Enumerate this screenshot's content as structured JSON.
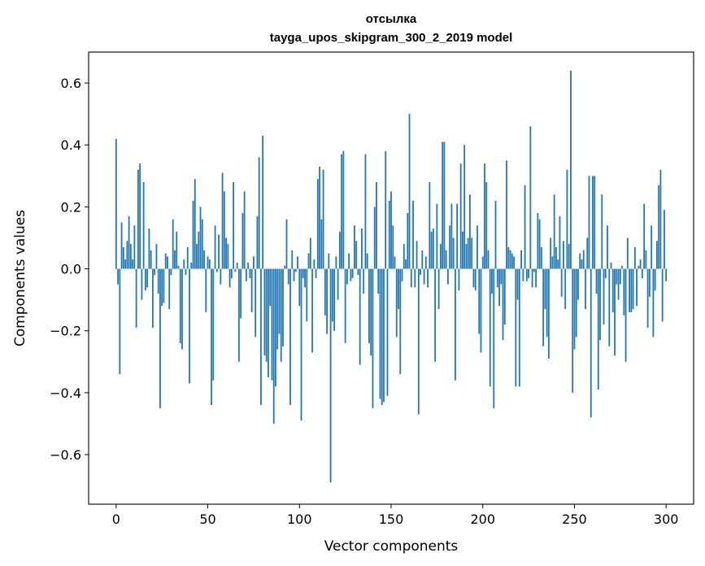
{
  "chart_data": {
    "type": "bar",
    "title": "отсылка",
    "subtitle": "tayga_upos_skipgram_300_2_2019 model",
    "xlabel": "Vector components",
    "ylabel": "Components values",
    "xlim": [
      -15,
      315
    ],
    "ylim": [
      -0.76,
      0.7
    ],
    "xticks": [
      0,
      50,
      100,
      150,
      200,
      250,
      300
    ],
    "xtick_labels": [
      "0",
      "50",
      "100",
      "150",
      "200",
      "250",
      "300"
    ],
    "yticks": [
      -0.6,
      -0.4,
      -0.2,
      0.0,
      0.2,
      0.4,
      0.6
    ],
    "ytick_labels": [
      "−0.6",
      "−0.4",
      "−0.2",
      "0.0",
      "0.2",
      "0.4",
      "0.6"
    ],
    "grid": false,
    "color": "#1f77b4",
    "x_start": 0,
    "values": [
      0.42,
      -0.05,
      -0.34,
      0.15,
      0.07,
      0.03,
      0.09,
      0.17,
      0.08,
      0.03,
      0.14,
      -0.19,
      0.32,
      0.34,
      -0.1,
      0.28,
      -0.07,
      -0.06,
      0.13,
      0.06,
      -0.19,
      -0.02,
      0.08,
      -0.08,
      -0.45,
      -0.12,
      -0.11,
      0.05,
      0.04,
      -0.13,
      -0.02,
      0.16,
      0.06,
      0.12,
      0.01,
      -0.24,
      -0.26,
      0.03,
      -0.02,
      0.07,
      -0.37,
      0.02,
      0.22,
      0.29,
      0.08,
      0.12,
      0.2,
      0.16,
      0.06,
      -0.14,
      0.04,
      0.03,
      -0.44,
      -0.36,
      0.14,
      -0.01,
      0.11,
      -0.05,
      0.31,
      0.25,
      0.1,
      0.08,
      -0.06,
      -0.03,
      0.28,
      -0.01,
      0.02,
      -0.3,
      -0.16,
      0.18,
      0.25,
      -0.04,
      0.02,
      -0.03,
      -0.14,
      0.04,
      -0.22,
      0.17,
      0.36,
      -0.44,
      0.43,
      -0.28,
      -0.3,
      -0.35,
      -0.12,
      -0.36,
      -0.5,
      -0.38,
      -0.26,
      -0.21,
      -0.3,
      -0.25,
      0.01,
      0.16,
      -0.05,
      -0.44,
      0.06,
      -0.04,
      -0.01,
      0.04,
      -0.12,
      -0.49,
      -0.03,
      -0.06,
      -0.17,
      0.05,
      0.1,
      -0.27,
      0.03,
      -0.03,
      0.29,
      0.33,
      0.16,
      0.32,
      -0.15,
      -0.21,
      0.05,
      -0.69,
      -0.17,
      -0.2,
      0.04,
      -0.1,
      0.12,
      0.37,
      0.38,
      -0.24,
      -0.05,
      0.05,
      -0.04,
      -0.03,
      0.14,
      0.09,
      -0.02,
      -0.31,
      0.13,
      -0.08,
      0.37,
      0.05,
      -0.24,
      -0.28,
      -0.45,
      0.2,
      0.28,
      -0.08,
      -0.42,
      -0.44,
      -0.43,
      0.38,
      -0.41,
      0.22,
      0.25,
      0.14,
      0.04,
      -0.22,
      -0.13,
      -0.34,
      -0.04,
      0.08,
      0.03,
      0.18,
      0.5,
      -0.06,
      0.22,
      -0.06,
      0.09,
      -0.47,
      -0.02,
      0.06,
      -0.05,
      0.04,
      -0.06,
      0.28,
      0.12,
      0.13,
      -0.3,
      0.21,
      -0.13,
      0.08,
      0.41,
      0.41,
      0.06,
      -0.05,
      0.14,
      0.21,
      0.1,
      -0.36,
      0.21,
      -0.07,
      0.34,
      0.12,
      0.4,
      0.08,
      0.1,
      0.24,
      0.1,
      -0.06,
      -0.07,
      0.14,
      -0.21,
      -0.27,
      0.04,
      0.34,
      0.28,
      0.06,
      -0.38,
      -0.08,
      -0.45,
      0.22,
      -0.06,
      -0.12,
      -0.05,
      -0.23,
      -0.18,
      0.35,
      0.07,
      0.06,
      0.05,
      0.04,
      -0.38,
      -0.1,
      -0.38,
      0.06,
      -0.04,
      0.27,
      -0.04,
      -0.03,
      0.46,
      -0.06,
      -0.01,
      -0.06,
      0.18,
      0.16,
      0.07,
      -0.25,
      -0.13,
      -0.22,
      -0.29,
      0.1,
      0.04,
      0.24,
      0.07,
      0.03,
      0.17,
      -0.09,
      0.09,
      -0.13,
      0.32,
      0.08,
      0.64,
      -0.4,
      -0.26,
      -0.22,
      -0.1,
      0.05,
      0.03,
      0.06,
      -0.13,
      0.1,
      0.3,
      -0.48,
      0.3,
      0.3,
      -0.08,
      -0.39,
      -0.23,
      0.24,
      -0.18,
      -0.03,
      0.14,
      -0.25,
      0.02,
      -0.14,
      -0.28,
      -0.05,
      -0.1,
      -0.05,
      0.01,
      -0.15,
      -0.3,
      0.1,
      -0.14,
      -0.14,
      -0.13,
      0.07,
      -0.12,
      0.01,
      0.03,
      -0.03,
      0.21,
      0.06,
      -0.19,
      -0.09,
      0.14,
      -0.22,
      -0.07,
      0.09,
      0.27,
      0.32,
      -0.17,
      0.19,
      -0.04
    ]
  }
}
